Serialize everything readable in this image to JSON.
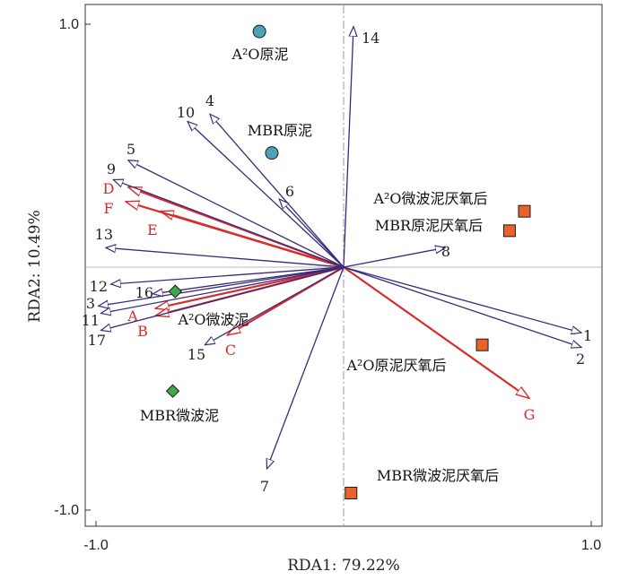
{
  "chart_data": {
    "type": "scatter",
    "subtype": "rda-biplot",
    "xlabel": "RDA1: 79.22%",
    "ylabel": "RDA2: 10.49%",
    "xlim": [
      -1.05,
      1.05
    ],
    "ylim": [
      -1.05,
      1.03
    ],
    "x_ticks": [
      -1.0,
      1.0
    ],
    "y_ticks": [
      1.0,
      -1.0
    ],
    "x_tick_labels": [
      "-1.0",
      "1.0"
    ],
    "y_tick_labels": [
      "1.0",
      "-1.0"
    ],
    "zero_lines": true,
    "colors": {
      "species_arrow": "#3a2a7a",
      "env_arrow": "#d92b2b",
      "env_label": "#d92b2b",
      "circle_sample": "#4aa3b5",
      "diamond_sample": "#3ea84a",
      "square_sample": "#e8622a"
    },
    "species_arrows": [
      {
        "label": "1",
        "x": 0.96,
        "y": -0.27
      },
      {
        "label": "2",
        "x": 0.96,
        "y": -0.33
      },
      {
        "label": "3",
        "x": -0.99,
        "y": -0.16
      },
      {
        "label": "4",
        "x": -0.54,
        "y": 0.63
      },
      {
        "label": "5",
        "x": -0.87,
        "y": 0.44
      },
      {
        "label": "6",
        "x": -0.26,
        "y": 0.28
      },
      {
        "label": "7",
        "x": -0.31,
        "y": -0.83
      },
      {
        "label": "8",
        "x": 0.41,
        "y": 0.08
      },
      {
        "label": "9",
        "x": -0.93,
        "y": 0.36
      },
      {
        "label": "10",
        "x": -0.63,
        "y": 0.6
      },
      {
        "label": "11",
        "x": -0.98,
        "y": -0.19
      },
      {
        "label": "12",
        "x": -0.94,
        "y": -0.07
      },
      {
        "label": "13",
        "x": -0.96,
        "y": 0.08
      },
      {
        "label": "14",
        "x": 0.04,
        "y": 0.99
      },
      {
        "label": "15",
        "x": -0.56,
        "y": -0.32
      },
      {
        "label": "16",
        "x": -0.77,
        "y": -0.11
      },
      {
        "label": "17",
        "x": -0.98,
        "y": -0.26
      }
    ],
    "env_arrows": [
      {
        "label": "A",
        "x": -0.76,
        "y": -0.17
      },
      {
        "label": "B",
        "x": -0.76,
        "y": -0.2
      },
      {
        "label": "C",
        "x": -0.47,
        "y": -0.28
      },
      {
        "label": "D",
        "x": -0.87,
        "y": 0.33
      },
      {
        "label": "E",
        "x": -0.74,
        "y": 0.23
      },
      {
        "label": "F",
        "x": -0.88,
        "y": 0.27
      },
      {
        "label": "G",
        "x": 0.75,
        "y": -0.54
      }
    ],
    "samples": [
      {
        "label": "A²O原泥",
        "marker": "circle",
        "x": -0.34,
        "y": 0.97
      },
      {
        "label": "MBR原泥",
        "marker": "circle",
        "x": -0.29,
        "y": 0.47
      },
      {
        "label": "A²O微波泥",
        "marker": "diamond",
        "x": -0.68,
        "y": -0.1
      },
      {
        "label": "MBR微波泥",
        "marker": "diamond",
        "x": -0.69,
        "y": -0.51
      },
      {
        "label": "A²O微波泥厌氧后",
        "marker": "square",
        "x": 0.73,
        "y": 0.23
      },
      {
        "label": "MBR原泥厌氧后",
        "marker": "square",
        "x": 0.67,
        "y": 0.15
      },
      {
        "label": "A²O原泥厌氧后",
        "marker": "square",
        "x": 0.56,
        "y": -0.32
      },
      {
        "label": "MBR微波泥厌氧后",
        "marker": "square",
        "x": 0.03,
        "y": -0.93
      }
    ]
  }
}
